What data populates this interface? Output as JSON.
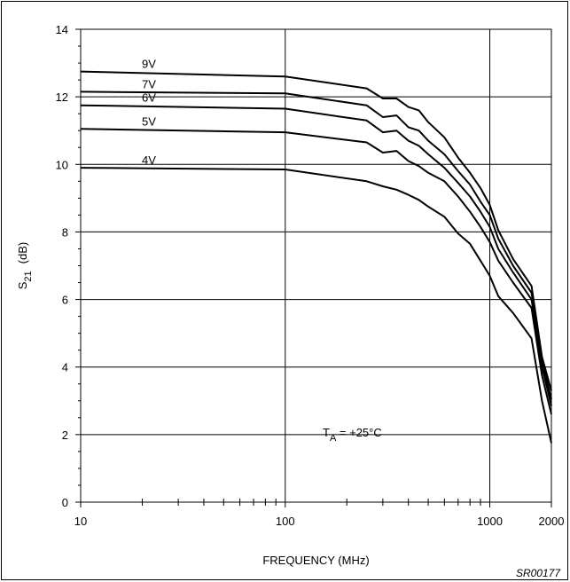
{
  "chart_data": {
    "type": "line",
    "xlabel": "FREQUENCY (MHz)",
    "ylabel": {
      "main": "S",
      "sub": "21",
      "unit": "(dB)"
    },
    "xscale": "log",
    "xlim": [
      10,
      2000
    ],
    "ylim": [
      0,
      14
    ],
    "x_ticks": [
      10,
      100,
      1000,
      2000
    ],
    "y_ticks": [
      0,
      2,
      4,
      6,
      8,
      10,
      12,
      14
    ],
    "grid": true,
    "annotation": {
      "main": "T",
      "sub": "A",
      "rest": " = +25°C"
    },
    "footer_code": "SR00177",
    "series": [
      {
        "name": "9V",
        "points": [
          [
            10,
            12.75
          ],
          [
            100,
            12.6
          ],
          [
            250,
            12.25
          ],
          [
            300,
            11.95
          ],
          [
            350,
            11.95
          ],
          [
            400,
            11.7
          ],
          [
            450,
            11.6
          ],
          [
            500,
            11.25
          ],
          [
            600,
            10.8
          ],
          [
            700,
            10.2
          ],
          [
            800,
            9.75
          ],
          [
            900,
            9.3
          ],
          [
            1000,
            8.8
          ],
          [
            1100,
            8.05
          ],
          [
            1300,
            7.2
          ],
          [
            1600,
            6.4
          ],
          [
            1800,
            4.3
          ],
          [
            2000,
            3.3
          ]
        ]
      },
      {
        "name": "7V",
        "points": [
          [
            10,
            12.15
          ],
          [
            100,
            12.1
          ],
          [
            250,
            11.75
          ],
          [
            300,
            11.4
          ],
          [
            350,
            11.45
          ],
          [
            400,
            11.1
          ],
          [
            450,
            11.0
          ],
          [
            500,
            10.7
          ],
          [
            600,
            10.3
          ],
          [
            700,
            9.8
          ],
          [
            800,
            9.4
          ],
          [
            900,
            8.9
          ],
          [
            1000,
            8.5
          ],
          [
            1100,
            7.8
          ],
          [
            1300,
            7.0
          ],
          [
            1600,
            6.2
          ],
          [
            1800,
            4.2
          ],
          [
            2000,
            3.05
          ]
        ]
      },
      {
        "name": "6V",
        "points": [
          [
            10,
            11.75
          ],
          [
            100,
            11.65
          ],
          [
            250,
            11.3
          ],
          [
            300,
            10.95
          ],
          [
            350,
            11.0
          ],
          [
            400,
            10.7
          ],
          [
            450,
            10.55
          ],
          [
            500,
            10.3
          ],
          [
            600,
            9.9
          ],
          [
            700,
            9.45
          ],
          [
            800,
            9.05
          ],
          [
            900,
            8.6
          ],
          [
            1000,
            8.15
          ],
          [
            1100,
            7.5
          ],
          [
            1300,
            6.8
          ],
          [
            1600,
            6.0
          ],
          [
            1800,
            4.0
          ],
          [
            2000,
            2.85
          ]
        ]
      },
      {
        "name": "5V",
        "points": [
          [
            10,
            11.05
          ],
          [
            100,
            10.95
          ],
          [
            250,
            10.65
          ],
          [
            300,
            10.35
          ],
          [
            350,
            10.4
          ],
          [
            400,
            10.1
          ],
          [
            450,
            9.95
          ],
          [
            500,
            9.75
          ],
          [
            600,
            9.5
          ],
          [
            700,
            9.05
          ],
          [
            800,
            8.6
          ],
          [
            900,
            8.15
          ],
          [
            1000,
            7.7
          ],
          [
            1100,
            7.15
          ],
          [
            1300,
            6.5
          ],
          [
            1600,
            5.75
          ],
          [
            1800,
            3.75
          ],
          [
            2000,
            2.6
          ]
        ]
      },
      {
        "name": "4V",
        "points": [
          [
            10,
            9.9
          ],
          [
            100,
            9.85
          ],
          [
            250,
            9.5
          ],
          [
            300,
            9.35
          ],
          [
            350,
            9.25
          ],
          [
            400,
            9.1
          ],
          [
            450,
            8.95
          ],
          [
            500,
            8.75
          ],
          [
            600,
            8.45
          ],
          [
            700,
            7.95
          ],
          [
            800,
            7.65
          ],
          [
            900,
            7.15
          ],
          [
            1000,
            6.7
          ],
          [
            1100,
            6.1
          ],
          [
            1300,
            5.6
          ],
          [
            1600,
            4.85
          ],
          [
            1800,
            3.0
          ],
          [
            2000,
            1.75
          ]
        ]
      }
    ]
  }
}
